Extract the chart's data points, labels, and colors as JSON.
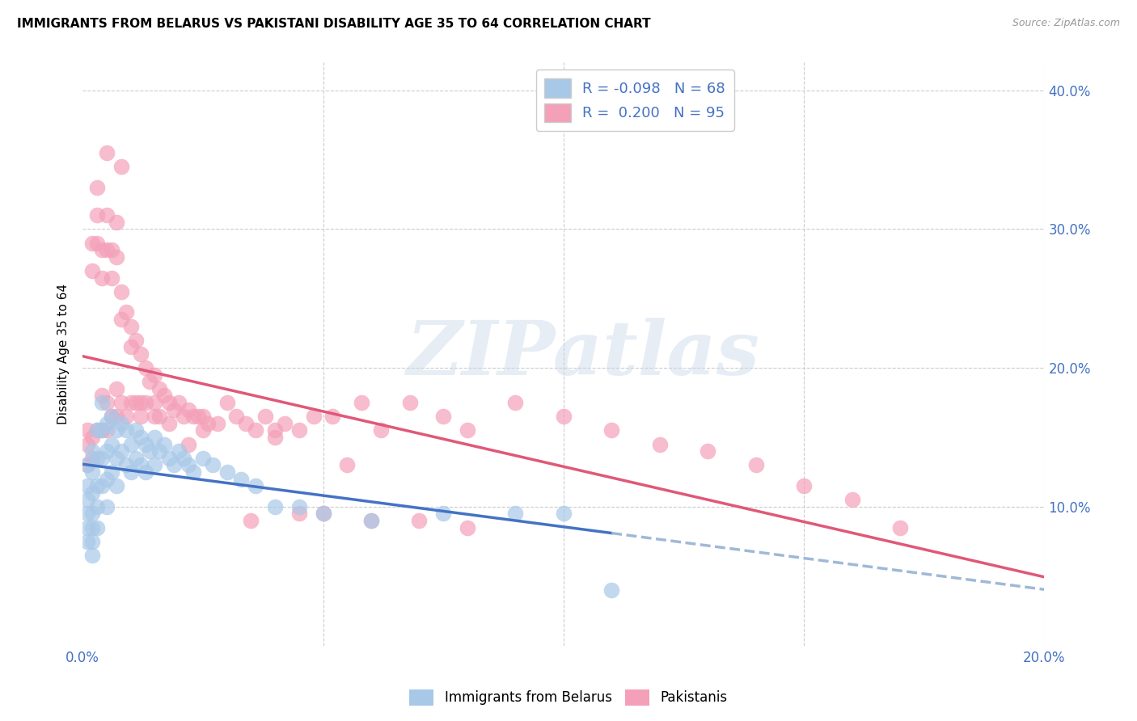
{
  "title": "IMMIGRANTS FROM BELARUS VS PAKISTANI DISABILITY AGE 35 TO 64 CORRELATION CHART",
  "source": "Source: ZipAtlas.com",
  "ylabel": "Disability Age 35 to 64",
  "xlim": [
    0.0,
    0.2
  ],
  "ylim": [
    0.0,
    0.42
  ],
  "r_belarus": -0.098,
  "n_belarus": 68,
  "r_pakistani": 0.2,
  "n_pakistani": 95,
  "color_belarus": "#a8c8e8",
  "color_pakistani": "#f4a0b8",
  "line_color_belarus_solid": "#4472c4",
  "line_color_belarus_dash": "#a0b8d8",
  "line_color_pakistani": "#e05878",
  "watermark_text": "ZIPatlas",
  "legend_labels": [
    "Immigrants from Belarus",
    "Pakistanis"
  ],
  "belarus_x": [
    0.001,
    0.001,
    0.001,
    0.001,
    0.001,
    0.001,
    0.002,
    0.002,
    0.002,
    0.002,
    0.002,
    0.002,
    0.002,
    0.003,
    0.003,
    0.003,
    0.003,
    0.003,
    0.004,
    0.004,
    0.004,
    0.004,
    0.005,
    0.005,
    0.005,
    0.005,
    0.006,
    0.006,
    0.006,
    0.007,
    0.007,
    0.007,
    0.008,
    0.008,
    0.009,
    0.009,
    0.01,
    0.01,
    0.011,
    0.011,
    0.012,
    0.012,
    0.013,
    0.013,
    0.014,
    0.015,
    0.015,
    0.016,
    0.017,
    0.018,
    0.019,
    0.02,
    0.021,
    0.022,
    0.023,
    0.025,
    0.027,
    0.03,
    0.033,
    0.036,
    0.04,
    0.045,
    0.05,
    0.06,
    0.075,
    0.09,
    0.1,
    0.11
  ],
  "belarus_y": [
    0.13,
    0.115,
    0.105,
    0.095,
    0.085,
    0.075,
    0.14,
    0.125,
    0.11,
    0.095,
    0.085,
    0.075,
    0.065,
    0.155,
    0.135,
    0.115,
    0.1,
    0.085,
    0.175,
    0.155,
    0.135,
    0.115,
    0.16,
    0.14,
    0.12,
    0.1,
    0.165,
    0.145,
    0.125,
    0.155,
    0.135,
    0.115,
    0.16,
    0.14,
    0.155,
    0.13,
    0.145,
    0.125,
    0.155,
    0.135,
    0.15,
    0.13,
    0.145,
    0.125,
    0.14,
    0.15,
    0.13,
    0.14,
    0.145,
    0.135,
    0.13,
    0.14,
    0.135,
    0.13,
    0.125,
    0.135,
    0.13,
    0.125,
    0.12,
    0.115,
    0.1,
    0.1,
    0.095,
    0.09,
    0.095,
    0.095,
    0.095,
    0.04
  ],
  "pakistani_x": [
    0.001,
    0.001,
    0.001,
    0.002,
    0.002,
    0.002,
    0.002,
    0.003,
    0.003,
    0.003,
    0.003,
    0.004,
    0.004,
    0.004,
    0.004,
    0.005,
    0.005,
    0.005,
    0.005,
    0.006,
    0.006,
    0.006,
    0.007,
    0.007,
    0.007,
    0.007,
    0.008,
    0.008,
    0.008,
    0.009,
    0.009,
    0.01,
    0.01,
    0.01,
    0.011,
    0.011,
    0.012,
    0.012,
    0.013,
    0.013,
    0.014,
    0.015,
    0.015,
    0.016,
    0.016,
    0.017,
    0.018,
    0.019,
    0.02,
    0.021,
    0.022,
    0.023,
    0.024,
    0.025,
    0.026,
    0.028,
    0.03,
    0.032,
    0.034,
    0.036,
    0.038,
    0.04,
    0.042,
    0.045,
    0.048,
    0.052,
    0.058,
    0.062,
    0.068,
    0.075,
    0.08,
    0.09,
    0.1,
    0.11,
    0.12,
    0.13,
    0.14,
    0.15,
    0.16,
    0.17,
    0.05,
    0.06,
    0.07,
    0.08,
    0.04,
    0.055,
    0.045,
    0.035,
    0.025,
    0.015,
    0.005,
    0.008,
    0.012,
    0.018,
    0.022
  ],
  "pakistani_y": [
    0.155,
    0.145,
    0.13,
    0.29,
    0.27,
    0.15,
    0.135,
    0.33,
    0.31,
    0.29,
    0.155,
    0.285,
    0.265,
    0.18,
    0.155,
    0.31,
    0.285,
    0.175,
    0.155,
    0.285,
    0.265,
    0.165,
    0.305,
    0.28,
    0.185,
    0.165,
    0.255,
    0.235,
    0.175,
    0.24,
    0.165,
    0.23,
    0.215,
    0.175,
    0.22,
    0.175,
    0.21,
    0.175,
    0.2,
    0.175,
    0.19,
    0.195,
    0.175,
    0.185,
    0.165,
    0.18,
    0.175,
    0.17,
    0.175,
    0.165,
    0.17,
    0.165,
    0.165,
    0.165,
    0.16,
    0.16,
    0.175,
    0.165,
    0.16,
    0.155,
    0.165,
    0.155,
    0.16,
    0.155,
    0.165,
    0.165,
    0.175,
    0.155,
    0.175,
    0.165,
    0.155,
    0.175,
    0.165,
    0.155,
    0.145,
    0.14,
    0.13,
    0.115,
    0.105,
    0.085,
    0.095,
    0.09,
    0.09,
    0.085,
    0.15,
    0.13,
    0.095,
    0.09,
    0.155,
    0.165,
    0.355,
    0.345,
    0.165,
    0.16,
    0.145
  ]
}
